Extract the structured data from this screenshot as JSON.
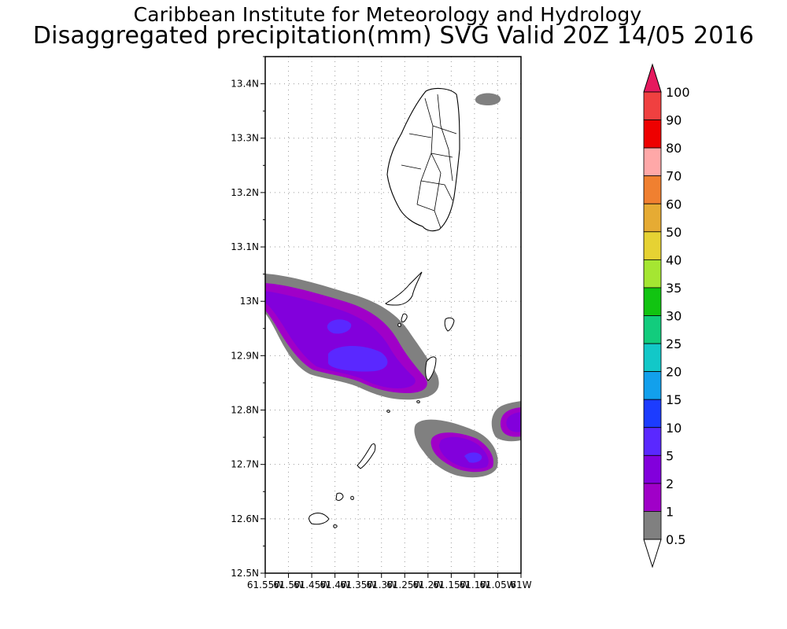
{
  "title": "Caribbean Institute for Meteorology and Hydrology",
  "subtitle": "Disaggregated precipitation(mm) SVG Valid 20Z 14/05 2016",
  "map": {
    "lat_range": [
      12.5,
      13.45
    ],
    "lon_range": [
      -61.55,
      -61.0
    ],
    "lat_ticks": [
      "13.4N",
      "13.3N",
      "13.2N",
      "13.1N",
      "13N",
      "12.9N",
      "12.8N",
      "12.7N",
      "12.6N",
      "12.5N"
    ],
    "lon_ticks": [
      "61.55W",
      "61.5W",
      "61.45W",
      "61.4W",
      "61.35W",
      "61.3W",
      "61.25W",
      "61.2W",
      "61.15W",
      "61.1W",
      "61.05W",
      "61W"
    ],
    "grid": true
  },
  "colorbar": {
    "labels": [
      "100",
      "90",
      "80",
      "70",
      "60",
      "50",
      "40",
      "35",
      "30",
      "25",
      "20",
      "15",
      "10",
      "5",
      "2",
      "1",
      "0.5"
    ],
    "colors": [
      "#e5195e",
      "#f04040",
      "#ee0000",
      "#ffa8a8",
      "#f08030",
      "#e6ab33",
      "#e6d233",
      "#a5e632",
      "#11c411",
      "#12cc7d",
      "#12c8c8",
      "#12a0ec",
      "#1c3cff",
      "#5a28ff",
      "#8200dc",
      "#a000c8",
      "#808080"
    ],
    "under_color": "#ffffff"
  },
  "precip_colors": {
    "gray": "#808080",
    "violet": "#a000c8",
    "purple": "#8200dc",
    "blue": "#5a28ff"
  }
}
